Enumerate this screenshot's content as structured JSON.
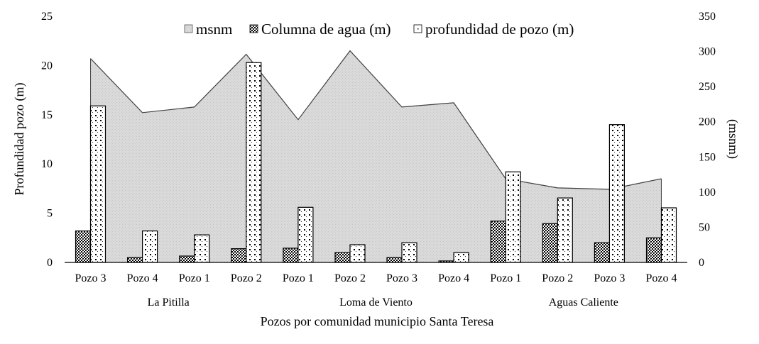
{
  "chart_data": {
    "type": "bar",
    "title": "",
    "xlabel": "Pozos por comunidad municipio Santa Teresa",
    "ylabel": "Profundidad pozo (m)",
    "y2label": "(msnm)",
    "ylim": [
      0,
      25
    ],
    "y2lim": [
      0,
      350
    ],
    "yticks": [
      0,
      5,
      10,
      15,
      20,
      25
    ],
    "y2ticks": [
      0,
      50,
      100,
      150,
      200,
      250,
      300,
      350
    ],
    "grid": false,
    "legend_position": "top",
    "groups": [
      {
        "name": "La Pitilla",
        "categories": [
          "Pozo 3",
          "Pozo 4",
          "Pozo 1",
          "Pozo 2"
        ]
      },
      {
        "name": "Loma de Viento",
        "categories": [
          "Pozo 1",
          "Pozo 2",
          "Pozo 3",
          "Pozo 4"
        ]
      },
      {
        "name": "Aguas Caliente",
        "categories": [
          "Pozo 1",
          "Pozo 2",
          "Pozo 3",
          "Pozo 4"
        ]
      }
    ],
    "categories": [
      "Pozo 3",
      "Pozo 4",
      "Pozo 1",
      "Pozo 2",
      "Pozo 1",
      "Pozo 2",
      "Pozo 3",
      "Pozo 4",
      "Pozo 1",
      "Pozo 2",
      "Pozo 3",
      "Pozo 4"
    ],
    "series": [
      {
        "name": "msnm",
        "type": "area",
        "axis": "right",
        "color": "#d9d9d9",
        "values": [
          290,
          213,
          221,
          296,
          203,
          301,
          221,
          227,
          119,
          106,
          104,
          119
        ]
      },
      {
        "name": "Columna de agua (m)",
        "type": "bar",
        "axis": "left",
        "pattern": "dense-check",
        "values": [
          3.2,
          0.5,
          0.65,
          1.4,
          1.45,
          1.0,
          0.5,
          0.15,
          4.2,
          3.95,
          2.0,
          2.5
        ]
      },
      {
        "name": "profundidad de pozo (m)",
        "type": "bar",
        "axis": "left",
        "pattern": "dots",
        "values": [
          15.9,
          3.2,
          2.8,
          20.3,
          5.6,
          1.8,
          2.0,
          1.0,
          9.2,
          6.55,
          14.0,
          5.55
        ]
      }
    ]
  },
  "legend": [
    {
      "label": "msnm"
    },
    {
      "label": "Columna de agua (m)"
    },
    {
      "label": "profundidad de pozo (m)"
    }
  ]
}
